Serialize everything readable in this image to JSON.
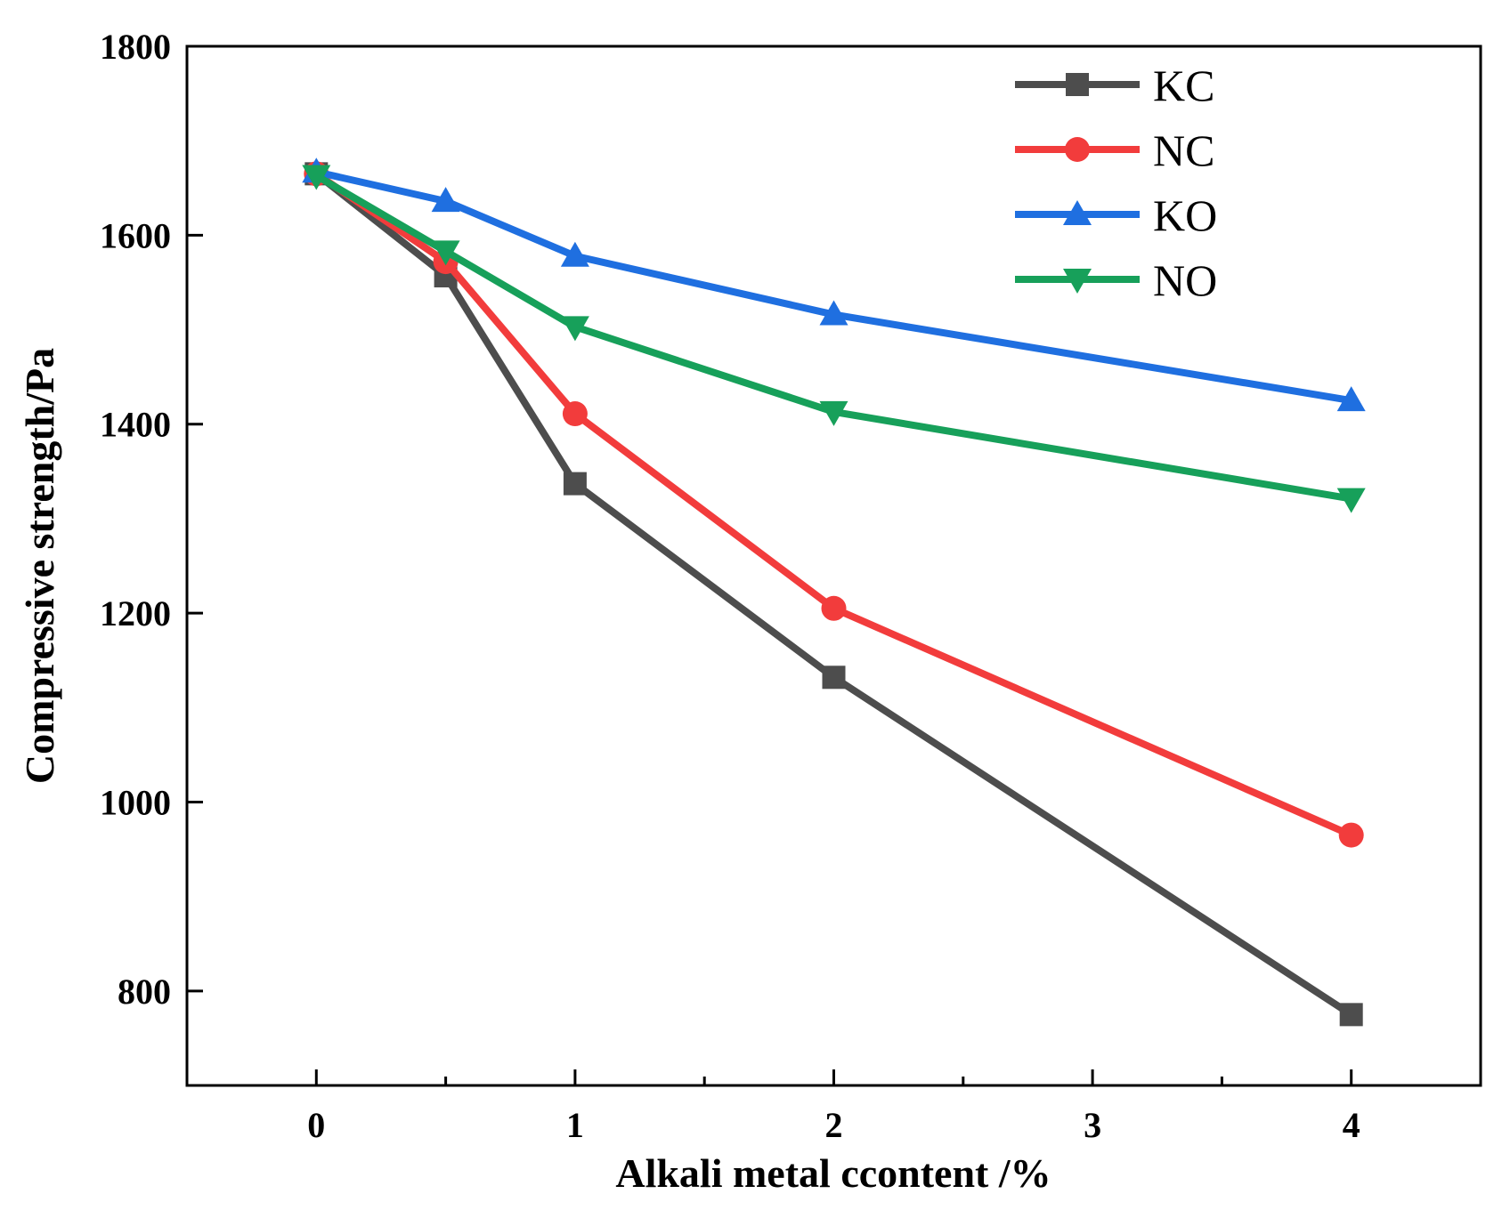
{
  "chart_data": {
    "type": "line",
    "xlabel": "Alkali metal ccontent /%",
    "ylabel": "Compressive strength/Pa",
    "xlim": [
      -0.5,
      4.5
    ],
    "ylim": [
      700,
      1800
    ],
    "x_ticks": [
      0,
      1,
      2,
      3,
      4
    ],
    "x_minor_ticks": [
      0.5,
      1.5,
      2.5,
      3.5
    ],
    "y_ticks": [
      800,
      1000,
      1200,
      1400,
      1600,
      1800
    ],
    "y_tick_labels": [
      "800",
      "1000",
      "1200",
      "1400",
      "1600",
      "1800"
    ],
    "x_tick_labels": [
      "0",
      "1",
      "2",
      "3",
      "4"
    ],
    "grid": false,
    "legend_position": "top-right",
    "series": [
      {
        "name": "KC",
        "color": "#4d4d4d",
        "marker": "square",
        "x": [
          0,
          0.5,
          1,
          2,
          4
        ],
        "y": [
          1665,
          1557,
          1337,
          1132,
          775
        ]
      },
      {
        "name": "NC",
        "color": "#f23c3c",
        "marker": "circle",
        "x": [
          0,
          0.5,
          1,
          2,
          4
        ],
        "y": [
          1665,
          1572,
          1411,
          1205,
          965
        ]
      },
      {
        "name": "KO",
        "color": "#1f6fe0",
        "marker": "triangle-up",
        "x": [
          0,
          0.5,
          1,
          2,
          4
        ],
        "y": [
          1667,
          1636,
          1578,
          1516,
          1425
        ]
      },
      {
        "name": "NO",
        "color": "#17a05a",
        "marker": "triangle-down",
        "x": [
          0,
          0.5,
          1,
          2,
          4
        ],
        "y": [
          1663,
          1583,
          1503,
          1413,
          1321
        ]
      }
    ]
  }
}
